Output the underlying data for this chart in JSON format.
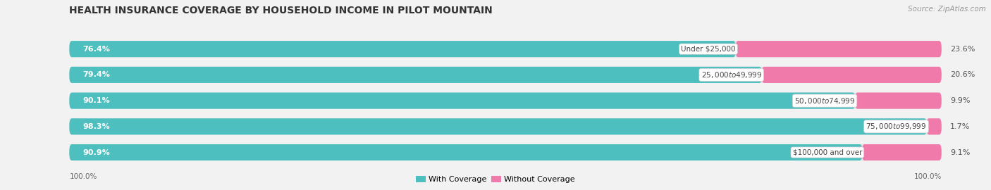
{
  "title": "HEALTH INSURANCE COVERAGE BY HOUSEHOLD INCOME IN PILOT MOUNTAIN",
  "source": "Source: ZipAtlas.com",
  "categories": [
    "Under $25,000",
    "$25,000 to $49,999",
    "$50,000 to $74,999",
    "$75,000 to $99,999",
    "$100,000 and over"
  ],
  "with_coverage": [
    76.4,
    79.4,
    90.1,
    98.3,
    90.9
  ],
  "without_coverage": [
    23.6,
    20.6,
    9.9,
    1.7,
    9.1
  ],
  "color_with": "#4dbfbf",
  "color_without": "#f07aaa",
  "bg_color": "#f2f2f2",
  "bar_bg_color": "#e2e2e2",
  "legend_with": "With Coverage",
  "legend_without": "Without Coverage",
  "left_label": "100.0%",
  "right_label": "100.0%",
  "title_fontsize": 10,
  "source_fontsize": 7.5,
  "bar_label_fontsize": 8,
  "cat_label_fontsize": 7.5,
  "legend_fontsize": 8,
  "bar_height": 0.62,
  "figsize": [
    14.06,
    2.7
  ],
  "dpi": 100
}
